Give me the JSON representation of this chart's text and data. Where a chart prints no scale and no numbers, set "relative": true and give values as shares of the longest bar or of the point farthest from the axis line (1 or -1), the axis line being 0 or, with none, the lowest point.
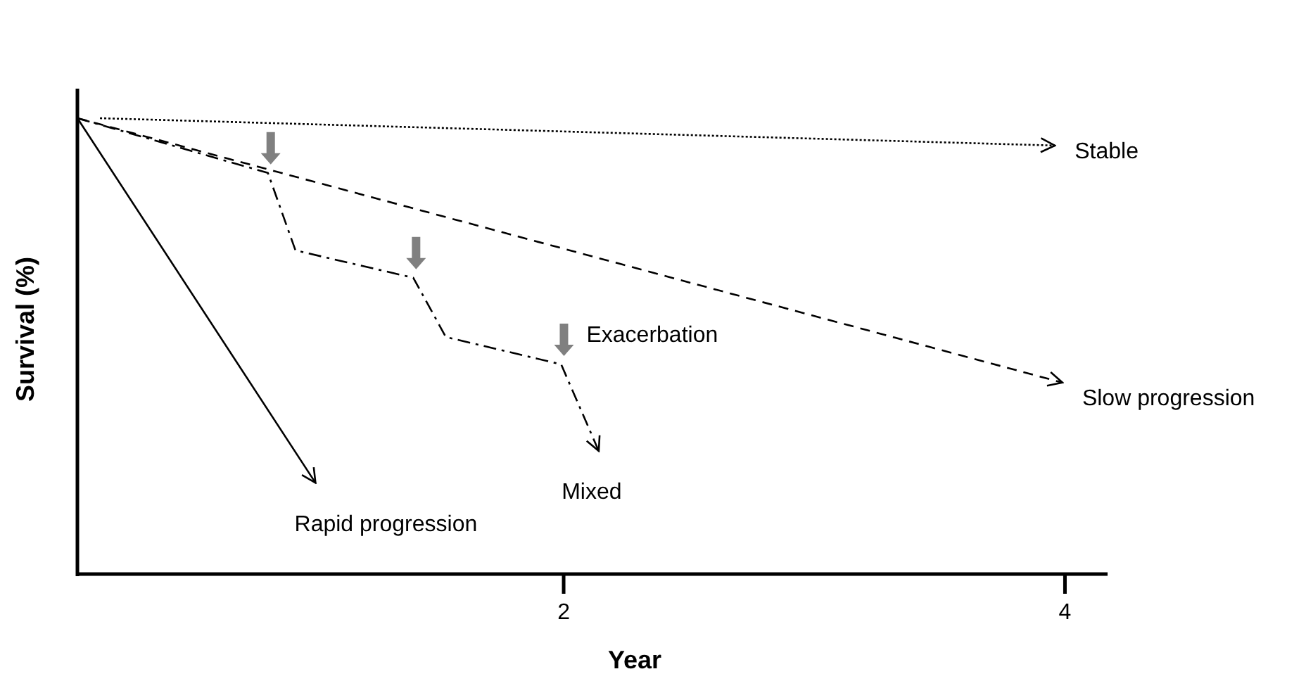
{
  "chart_data": {
    "type": "line",
    "relative": true,
    "xlabel": "Year",
    "ylabel": "Survival (%)",
    "xlim": [
      0.06,
      4.17
    ],
    "xticks": [
      2,
      4
    ],
    "grid": false,
    "marker": "none",
    "annotations": [
      {
        "text": "Exacerbation",
        "x": 1.99,
        "y": 0.46
      }
    ],
    "series": [
      {
        "name": "Stable",
        "color": "#000000",
        "line_style": "dotted",
        "x": [
          0.15,
          3.96
        ],
        "values": [
          1.0,
          0.94
        ]
      },
      {
        "name": "Slow progression",
        "color": "#000000",
        "line_style": "dashed",
        "x": [
          0.06,
          3.99
        ],
        "values": [
          1.0,
          0.42
        ]
      },
      {
        "name": "Rapid progression",
        "color": "#000000",
        "line_style": "solid",
        "x": [
          0.06,
          1.01
        ],
        "values": [
          1.0,
          0.2
        ]
      },
      {
        "name": "Mixed",
        "color": "#000000",
        "line_style": "dashdot",
        "x": [
          0.06,
          0.82,
          0.93,
          1.4,
          1.53,
          1.99,
          2.14
        ],
        "values": [
          1.0,
          0.88,
          0.71,
          0.65,
          0.52,
          0.46,
          0.27
        ]
      }
    ]
  }
}
